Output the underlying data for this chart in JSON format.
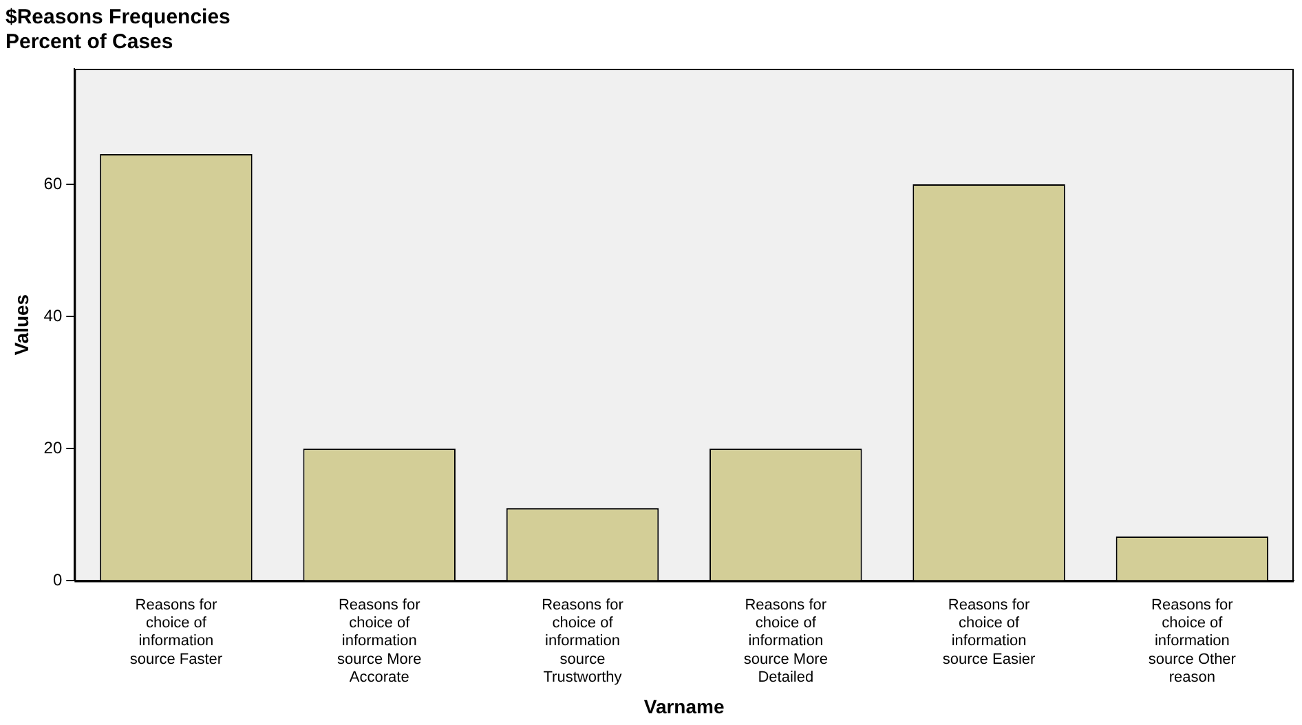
{
  "chart_data": {
    "type": "bar",
    "title": "$Reasons Frequencies",
    "subtitle": "Percent of Cases",
    "xlabel": "Varname",
    "ylabel": "Values",
    "categories": [
      "Reasons for choice of information source Faster",
      "Reasons for choice of information source More Accorate",
      "Reasons for choice of information source Trustworthy",
      "Reasons for choice of information source More Detailed",
      "Reasons for choice of information source Easier",
      "Reasons for choice of information source Other reason"
    ],
    "values": [
      64.6,
      20,
      11,
      20,
      60,
      6.7
    ],
    "color": "#d3ce97",
    "ylim": [
      0,
      77.5
    ],
    "yticks": [
      0,
      20,
      40,
      60
    ],
    "grid": false,
    "legend": false
  }
}
